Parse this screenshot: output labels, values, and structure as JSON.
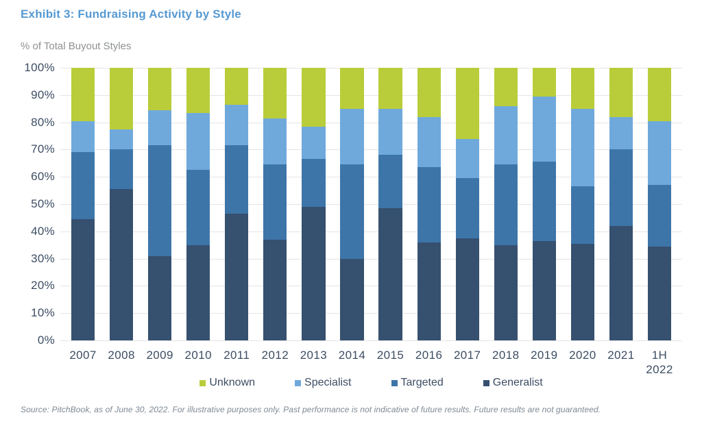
{
  "header": {
    "title": "Exhibit 3: Fundraising Activity by Style"
  },
  "chart": {
    "subtitle": "% of Total Buyout Styles"
  },
  "chart_data": {
    "type": "bar",
    "stacked": true,
    "unit": "percent",
    "title": "Exhibit 3: Fundraising Activity by Style",
    "ylabel": "% of Total Buyout Styles",
    "ylim": [
      0,
      100
    ],
    "grid": "horizontal",
    "legend_position": "bottom",
    "categories": [
      "2007",
      "2008",
      "2009",
      "2010",
      "2011",
      "2012",
      "2013",
      "2014",
      "2015",
      "2016",
      "2017",
      "2018",
      "2019",
      "2020",
      "2021",
      "1H\n2022"
    ],
    "series": [
      {
        "name": "Generalist",
        "color": "#36506f",
        "values": [
          44.5,
          55.5,
          31,
          35,
          46.5,
          37,
          49,
          30,
          48.5,
          36,
          37.5,
          35,
          36.5,
          35.5,
          42,
          34.5
        ]
      },
      {
        "name": "Targeted",
        "color": "#3d75a9",
        "values": [
          24.5,
          14.5,
          40.5,
          27.5,
          25,
          27.5,
          17.5,
          34.5,
          19.5,
          27.5,
          22,
          29.5,
          29,
          21,
          28,
          22.5
        ]
      },
      {
        "name": "Specialist",
        "color": "#6fa9dc",
        "values": [
          11.5,
          7.5,
          13,
          21,
          15,
          17,
          12,
          20.5,
          17,
          18.5,
          14.5,
          21.5,
          24,
          28.5,
          12,
          23.5
        ]
      },
      {
        "name": "Unknown",
        "color": "#b9cd3a",
        "values": [
          19.5,
          22.5,
          15.5,
          16.5,
          13.5,
          18.5,
          21.5,
          15,
          15,
          18,
          26,
          14,
          10.5,
          15,
          18,
          19.5
        ]
      }
    ],
    "y_ticks": [
      "100%",
      "90%",
      "80%",
      "70%",
      "60%",
      "50%",
      "40%",
      "30%",
      "20%",
      "10%",
      "0%"
    ],
    "legend": [
      {
        "label": "Unknown",
        "color": "#b9cd3a"
      },
      {
        "label": "Specialist",
        "color": "#6fa9dc"
      },
      {
        "label": "Targeted",
        "color": "#3d75a9"
      },
      {
        "label": "Generalist",
        "color": "#36506f"
      }
    ]
  },
  "footer": {
    "source": "Source: PitchBook, as of June 30, 2022. For illustrative purposes only. Past performance is not indicative of future results. Future results are not guaranteed."
  }
}
